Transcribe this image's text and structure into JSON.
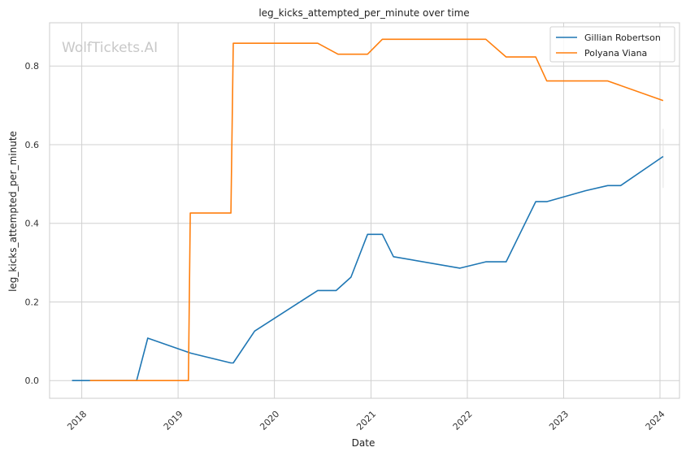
{
  "watermark": "WolfTickets.AI",
  "colors": {
    "gillian": "#1f77b4",
    "polyana": "#ff7f0e",
    "grid": "#d0d0d0",
    "frame": "#cccccc"
  },
  "chart_data": {
    "type": "line",
    "title": "leg_kicks_attempted_per_minute over time",
    "xlabel": "Date",
    "ylabel": "leg_kicks_attempted_per_minute",
    "x_ticks": [
      "2018",
      "2019",
      "2020",
      "2021",
      "2022",
      "2023",
      "2024"
    ],
    "y_ticks": [
      "0.0",
      "0.2",
      "0.4",
      "0.6",
      "0.8"
    ],
    "xlim": [
      "2017-09-01",
      "2024-03-15"
    ],
    "ylim": [
      -0.045,
      0.91
    ],
    "grid": true,
    "legend_position": "top-right",
    "series": [
      {
        "name": "Gillian Robertson",
        "color": "#1f77b4",
        "points": [
          [
            "2017-11-25",
            0.0
          ],
          [
            "2018-02-01",
            0.0
          ],
          [
            "2018-07-28",
            0.0
          ],
          [
            "2018-09-08",
            0.108
          ],
          [
            "2019-02-17",
            0.07
          ],
          [
            "2019-07-20",
            0.045
          ],
          [
            "2019-07-29",
            0.045
          ],
          [
            "2019-10-18",
            0.126
          ],
          [
            "2020-06-13",
            0.229
          ],
          [
            "2020-08-22",
            0.229
          ],
          [
            "2020-10-17",
            0.263
          ],
          [
            "2020-12-19",
            0.372
          ],
          [
            "2021-02-13",
            0.372
          ],
          [
            "2021-03-27",
            0.315
          ],
          [
            "2021-12-04",
            0.286
          ],
          [
            "2022-03-12",
            0.302
          ],
          [
            "2022-05-28",
            0.302
          ],
          [
            "2022-09-17",
            0.455
          ],
          [
            "2022-10-29",
            0.455
          ],
          [
            "2023-03-25",
            0.483
          ],
          [
            "2023-06-17",
            0.496
          ],
          [
            "2023-08-05",
            0.496
          ],
          [
            "2024-01-13",
            0.57
          ]
        ]
      },
      {
        "name": "Polyana Viana",
        "color": "#ff7f0e",
        "points": [
          [
            "2018-02-01",
            0.0
          ],
          [
            "2019-02-09",
            0.0
          ],
          [
            "2019-02-16",
            0.426
          ],
          [
            "2019-07-20",
            0.426
          ],
          [
            "2019-07-29",
            0.858
          ],
          [
            "2020-06-13",
            0.858
          ],
          [
            "2020-08-29",
            0.83
          ],
          [
            "2020-12-19",
            0.83
          ],
          [
            "2021-02-13",
            0.868
          ],
          [
            "2022-03-12",
            0.868
          ],
          [
            "2022-05-28",
            0.823
          ],
          [
            "2022-09-17",
            0.823
          ],
          [
            "2022-10-29",
            0.762
          ],
          [
            "2023-06-17",
            0.762
          ],
          [
            "2024-01-13",
            0.712
          ]
        ]
      }
    ]
  }
}
